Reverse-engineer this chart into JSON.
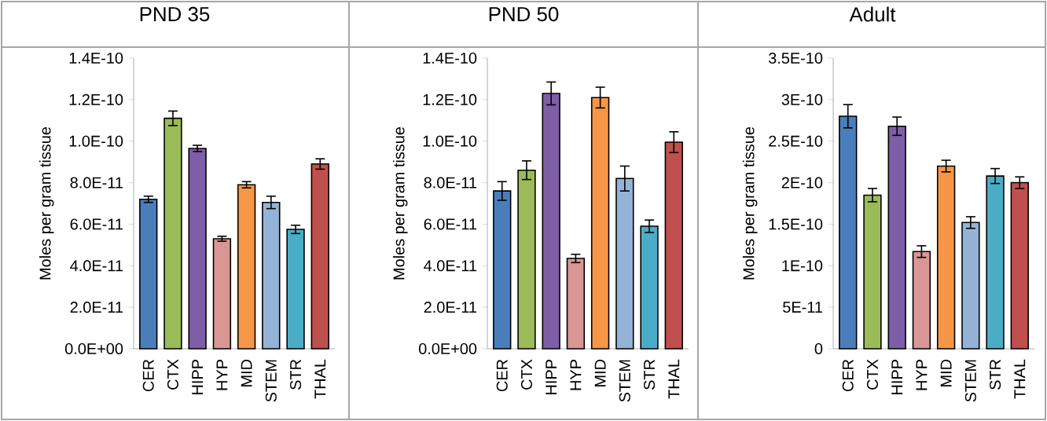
{
  "chart_data": [
    {
      "type": "bar",
      "title": "PND 35",
      "ylabel": "Moles per gram tissue",
      "categories": [
        "CER",
        "CTX",
        "HIPP",
        "HYP",
        "MID",
        "STEM",
        "STR",
        "THAL"
      ],
      "values": [
        7.2e-11,
        1.11e-10,
        9.65e-11,
        5.3e-11,
        7.9e-11,
        7.05e-11,
        5.75e-11,
        8.9e-11
      ],
      "errors": [
        1.5e-12,
        3.5e-12,
        1.5e-12,
        1.2e-12,
        1.5e-12,
        3e-12,
        2e-12,
        2.5e-12
      ],
      "colors": [
        "#4a7ebb",
        "#9bbb59",
        "#7f5ea8",
        "#d99694",
        "#f79646",
        "#95b3d7",
        "#4bacc6",
        "#c0504d"
      ],
      "ylim": [
        0,
        1.4e-10
      ],
      "yticks": [
        {
          "value": 0,
          "label": "0.0E+00"
        },
        {
          "value": 2e-11,
          "label": "2.0E-11"
        },
        {
          "value": 4e-11,
          "label": "4.0E-11"
        },
        {
          "value": 6e-11,
          "label": "6.0E-11"
        },
        {
          "value": 8e-11,
          "label": "8.0E-11"
        },
        {
          "value": 1e-10,
          "label": "1.0E-10"
        },
        {
          "value": 1.2e-10,
          "label": "1.2E-10"
        },
        {
          "value": 1.4e-10,
          "label": "1.4E-10"
        }
      ]
    },
    {
      "type": "bar",
      "title": "PND 50",
      "ylabel": "Moles per gram tissue",
      "categories": [
        "CER",
        "CTX",
        "HIPP",
        "HYP",
        "MID",
        "STEM",
        "STR",
        "THAL"
      ],
      "values": [
        7.6e-11,
        8.6e-11,
        1.23e-10,
        4.35e-11,
        1.21e-10,
        8.2e-11,
        5.9e-11,
        9.95e-11
      ],
      "errors": [
        4.5e-12,
        4.5e-12,
        5.5e-12,
        2e-12,
        5e-12,
        6e-12,
        3e-12,
        5e-12
      ],
      "colors": [
        "#4a7ebb",
        "#9bbb59",
        "#7f5ea8",
        "#d99694",
        "#f79646",
        "#95b3d7",
        "#4bacc6",
        "#c0504d"
      ],
      "ylim": [
        0,
        1.4e-10
      ],
      "yticks": [
        {
          "value": 0,
          "label": "0.0E+00"
        },
        {
          "value": 2e-11,
          "label": "2.0E-11"
        },
        {
          "value": 4e-11,
          "label": "4.0E-11"
        },
        {
          "value": 6e-11,
          "label": "6.0E-11"
        },
        {
          "value": 8e-11,
          "label": "8.0E-11"
        },
        {
          "value": 1e-10,
          "label": "1.0E-10"
        },
        {
          "value": 1.2e-10,
          "label": "1.2E-10"
        },
        {
          "value": 1.4e-10,
          "label": "1.4E-10"
        }
      ]
    },
    {
      "type": "bar",
      "title": "Adult",
      "ylabel": "Moles per gram tissue",
      "categories": [
        "CER",
        "CTX",
        "HIPP",
        "HYP",
        "MID",
        "STEM",
        "STR",
        "THAL"
      ],
      "values": [
        2.8e-10,
        1.85e-10,
        2.68e-10,
        1.17e-10,
        2.2e-10,
        1.52e-10,
        2.08e-10,
        2e-10
      ],
      "errors": [
        1.4e-11,
        8e-12,
        1.1e-11,
        7e-12,
        7e-12,
        7e-12,
        9e-12,
        7e-12
      ],
      "colors": [
        "#4a7ebb",
        "#9bbb59",
        "#7f5ea8",
        "#d99694",
        "#f79646",
        "#95b3d7",
        "#4bacc6",
        "#c0504d"
      ],
      "ylim": [
        0,
        3.5e-10
      ],
      "yticks": [
        {
          "value": 0,
          "label": "0"
        },
        {
          "value": 5e-11,
          "label": "5E-11"
        },
        {
          "value": 1e-10,
          "label": "1E-10"
        },
        {
          "value": 1.5e-10,
          "label": "1.5E-10"
        },
        {
          "value": 2e-10,
          "label": "2E-10"
        },
        {
          "value": 2.5e-10,
          "label": "2.5E-10"
        },
        {
          "value": 3e-10,
          "label": "3E-10"
        },
        {
          "value": 3.5e-10,
          "label": "3.5E-10"
        }
      ]
    }
  ]
}
